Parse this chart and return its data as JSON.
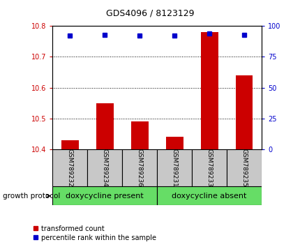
{
  "title": "GDS4096 / 8123129",
  "samples": [
    "GSM789232",
    "GSM789234",
    "GSM789236",
    "GSM789231",
    "GSM789233",
    "GSM789235"
  ],
  "transformed_count": [
    10.43,
    10.55,
    10.49,
    10.44,
    10.78,
    10.64
  ],
  "percentile_rank": [
    92,
    93,
    92,
    92,
    94,
    93
  ],
  "ylim_left": [
    10.4,
    10.8
  ],
  "ylim_right": [
    0,
    100
  ],
  "yticks_left": [
    10.4,
    10.5,
    10.6,
    10.7,
    10.8
  ],
  "yticks_right": [
    0,
    25,
    50,
    75,
    100
  ],
  "group1_label": "doxycycline present",
  "group2_label": "doxycycline absent",
  "group_label": "growth protocol",
  "bar_color": "#CC0000",
  "dot_color": "#0000CC",
  "bar_width": 0.5,
  "bg_plot": "#ffffff",
  "bg_sample": "#C8C8C8",
  "bg_group": "#66DD66",
  "title_fontsize": 9,
  "tick_fontsize": 7,
  "sample_fontsize": 6.5,
  "group_fontsize": 8,
  "legend_fontsize": 7
}
